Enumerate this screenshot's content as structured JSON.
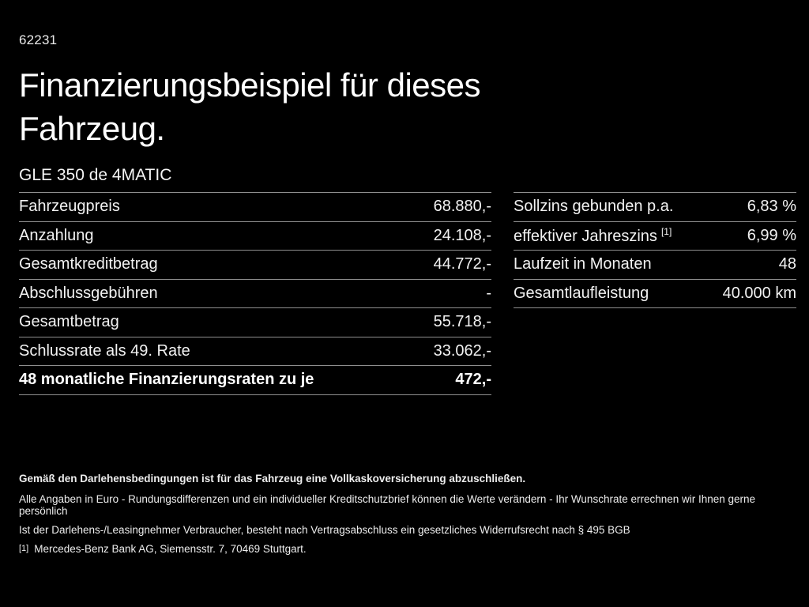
{
  "colors": {
    "background": "#000000",
    "text": "#f2f2f2",
    "divider": "#8f8f8f"
  },
  "header": {
    "code": "62231",
    "title_line1": "Finanzierungsbeispiel für dieses",
    "title_line2": "Fahrzeug.",
    "model": "GLE 350 de 4MATIC"
  },
  "financing_table": {
    "rows": [
      {
        "label": "Fahrzeugpreis",
        "value": "68.880,-",
        "bold": false
      },
      {
        "label": "Anzahlung",
        "value": "24.108,-",
        "bold": false
      },
      {
        "label": "Gesamtkreditbetrag",
        "value": "44.772,-",
        "bold": false
      },
      {
        "label": "Abschlussgebühren",
        "value": "-",
        "bold": false
      },
      {
        "label": "Gesamtbetrag",
        "value": "55.718,-",
        "bold": false
      },
      {
        "label": "Schlussrate als 49. Rate",
        "value": "33.062,-",
        "bold": false
      },
      {
        "label": "48 monatliche Finanzierungsraten zu je",
        "value": "472,-",
        "bold": true
      }
    ]
  },
  "conditions_table": {
    "rows": [
      {
        "label": "Sollzins gebunden p.a.",
        "value": "6,83 %",
        "bold": false
      },
      {
        "label": "effektiver Jahreszins",
        "footnote": "[1]",
        "value": "6,99 %",
        "bold": false
      },
      {
        "label": "Laufzeit in Monaten",
        "value": "48",
        "bold": false
      },
      {
        "label": "Gesamtlaufleistung",
        "value": "40.000 km",
        "bold": false
      }
    ]
  },
  "footer": {
    "insurance_note": "Gemäß den Darlehensbedingungen ist für das Fahrzeug eine Vollkaskoversicherung abzuschließen.",
    "disclaimer": "Alle Angaben in Euro - Rundungsdifferenzen und ein individueller Kreditschutzbrief können die Werte verändern - Ihr Wunschrate errechnen wir Ihnen gerne persönlich",
    "withdrawal_note": "Ist der Darlehens-/Leasingnehmer Verbraucher, besteht nach Vertragsabschluss ein gesetzliches Widerrufsrecht nach § 495 BGB",
    "bank_footnote_marker": "[1]",
    "bank_footnote_text": "Mercedes-Benz Bank AG, Siemensstr. 7, 70469 Stuttgart."
  }
}
